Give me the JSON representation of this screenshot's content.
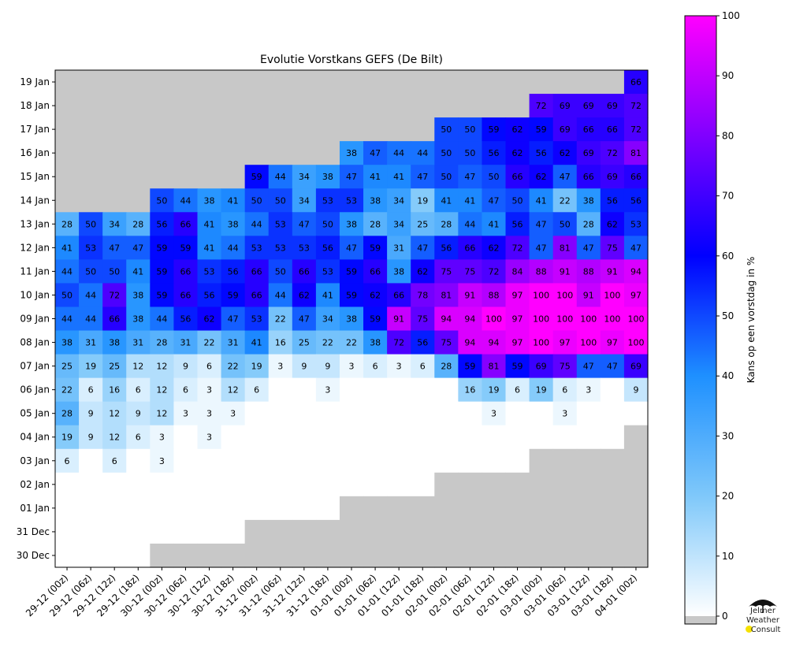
{
  "chart_data": {
    "type": "heatmap",
    "title": "Evolutie Vorstkans GEFS (De Bilt)",
    "x_categories": [
      "29-12 (00z)",
      "29-12 (06z)",
      "29-12 (12z)",
      "29-12 (18z)",
      "30-12 (00z)",
      "30-12 (06z)",
      "30-12 (12z)",
      "30-12 (18z)",
      "31-12 (00z)",
      "31-12 (06z)",
      "31-12 (12z)",
      "31-12 (18z)",
      "01-01 (00z)",
      "01-01 (06z)",
      "01-01 (12z)",
      "01-01 (18z)",
      "02-01 (00z)",
      "02-01 (06z)",
      "02-01 (12z)",
      "02-01 (18z)",
      "03-01 (00z)",
      "03-01 (06z)",
      "03-01 (12z)",
      "03-01 (18z)",
      "04-01 (00z)"
    ],
    "y_categories": [
      "19 Jan",
      "18 Jan",
      "17 Jan",
      "16 Jan",
      "15 Jan",
      "14 Jan",
      "13 Jan",
      "12 Jan",
      "11 Jan",
      "10 Jan",
      "09 Jan",
      "08 Jan",
      "07 Jan",
      "06 Jan",
      "05 Jan",
      "04 Jan",
      "03 Jan",
      "02 Jan",
      "01 Jan",
      "31 Dec",
      "30 Dec"
    ],
    "values": [
      [
        null,
        null,
        null,
        null,
        null,
        null,
        null,
        null,
        null,
        null,
        null,
        null,
        null,
        null,
        null,
        null,
        null,
        null,
        null,
        null,
        null,
        null,
        null,
        null,
        66
      ],
      [
        null,
        null,
        null,
        null,
        null,
        null,
        null,
        null,
        null,
        null,
        null,
        null,
        null,
        null,
        null,
        null,
        null,
        null,
        null,
        null,
        72,
        69,
        69,
        69,
        72
      ],
      [
        null,
        null,
        null,
        null,
        null,
        null,
        null,
        null,
        null,
        null,
        null,
        null,
        null,
        null,
        null,
        null,
        50,
        50,
        59,
        62,
        59,
        69,
        66,
        66,
        72
      ],
      [
        null,
        null,
        null,
        null,
        null,
        null,
        null,
        null,
        null,
        null,
        null,
        null,
        38,
        47,
        44,
        44,
        50,
        50,
        56,
        62,
        56,
        62,
        69,
        72,
        81
      ],
      [
        null,
        null,
        null,
        null,
        null,
        null,
        null,
        null,
        59,
        44,
        34,
        38,
        47,
        41,
        41,
        47,
        50,
        47,
        50,
        66,
        62,
        47,
        66,
        69,
        66
      ],
      [
        null,
        null,
        null,
        null,
        50,
        44,
        38,
        41,
        50,
        50,
        34,
        53,
        53,
        38,
        34,
        19,
        41,
        41,
        47,
        50,
        41,
        22,
        38,
        56,
        56
      ],
      [
        28,
        50,
        34,
        28,
        56,
        66,
        41,
        38,
        44,
        53,
        47,
        50,
        38,
        28,
        34,
        25,
        28,
        44,
        41,
        56,
        47,
        50,
        28,
        62,
        53
      ],
      [
        41,
        53,
        47,
        47,
        59,
        59,
        41,
        44,
        53,
        53,
        53,
        56,
        47,
        59,
        31,
        47,
        56,
        66,
        62,
        72,
        47,
        81,
        47,
        75,
        47
      ],
      [
        44,
        50,
        50,
        41,
        59,
        66,
        53,
        56,
        66,
        50,
        66,
        53,
        59,
        66,
        38,
        62,
        75,
        75,
        72,
        84,
        88,
        91,
        88,
        91,
        94
      ],
      [
        50,
        44,
        72,
        38,
        59,
        66,
        56,
        59,
        66,
        44,
        62,
        41,
        59,
        62,
        66,
        78,
        81,
        91,
        88,
        97,
        100,
        100,
        91,
        100,
        97
      ],
      [
        44,
        44,
        66,
        38,
        44,
        56,
        62,
        47,
        53,
        22,
        47,
        34,
        38,
        59,
        91,
        75,
        94,
        94,
        100,
        97,
        100,
        100,
        100,
        100,
        100
      ],
      [
        38,
        31,
        38,
        31,
        28,
        31,
        22,
        31,
        41,
        16,
        25,
        22,
        22,
        38,
        72,
        56,
        75,
        94,
        94,
        97,
        100,
        97,
        100,
        97,
        100
      ],
      [
        25,
        19,
        25,
        12,
        12,
        9,
        6,
        22,
        19,
        3,
        9,
        9,
        3,
        6,
        3,
        6,
        28,
        59,
        81,
        59,
        69,
        75,
        47,
        47,
        69
      ],
      [
        22,
        6,
        16,
        6,
        12,
        6,
        3,
        12,
        6,
        0,
        0,
        3,
        0,
        0,
        0,
        0,
        0,
        16,
        19,
        6,
        19,
        6,
        3,
        0,
        9
      ],
      [
        28,
        9,
        12,
        9,
        12,
        3,
        3,
        3,
        0,
        0,
        0,
        0,
        0,
        0,
        0,
        0,
        0,
        0,
        3,
        0,
        0,
        3,
        0,
        0,
        0
      ],
      [
        19,
        9,
        12,
        6,
        3,
        0,
        3,
        0,
        0,
        0,
        0,
        0,
        0,
        0,
        0,
        0,
        0,
        0,
        0,
        0,
        0,
        0,
        0,
        0,
        null
      ],
      [
        6,
        0,
        6,
        0,
        3,
        0,
        0,
        0,
        0,
        0,
        0,
        0,
        0,
        0,
        0,
        0,
        0,
        0,
        0,
        0,
        null,
        null,
        null,
        null,
        null
      ],
      [
        0,
        0,
        0,
        0,
        0,
        0,
        0,
        0,
        0,
        0,
        0,
        0,
        0,
        0,
        0,
        0,
        null,
        null,
        null,
        null,
        null,
        null,
        null,
        null,
        null
      ],
      [
        0,
        0,
        0,
        0,
        0,
        0,
        0,
        0,
        0,
        0,
        0,
        0,
        null,
        null,
        null,
        null,
        null,
        null,
        null,
        null,
        null,
        null,
        null,
        null,
        null
      ],
      [
        0,
        0,
        0,
        0,
        0,
        0,
        0,
        0,
        null,
        null,
        null,
        null,
        null,
        null,
        null,
        null,
        null,
        null,
        null,
        null,
        null,
        null,
        null,
        null,
        null
      ],
      [
        0,
        0,
        0,
        0,
        null,
        null,
        null,
        null,
        null,
        null,
        null,
        null,
        null,
        null,
        null,
        null,
        null,
        null,
        null,
        null,
        null,
        null,
        null,
        null,
        null
      ]
    ],
    "missing_color": "#c8c8c8",
    "colorbar": {
      "label": "Kans op een vorstdag in %",
      "range": [
        0,
        100
      ],
      "ticks": [
        "0",
        "10",
        "20",
        "30",
        "40",
        "50",
        "60",
        "70",
        "80",
        "90",
        "100"
      ],
      "colors": [
        "#ffffff",
        "#7fc8fa",
        "#1e90ff",
        "#0000ff",
        "#8000ff",
        "#ff00ff"
      ]
    },
    "grid": false
  },
  "logo": {
    "line1": "Jelmer",
    "line2": "Weather",
    "line3": "Consult",
    "accent": "#f5e100"
  }
}
